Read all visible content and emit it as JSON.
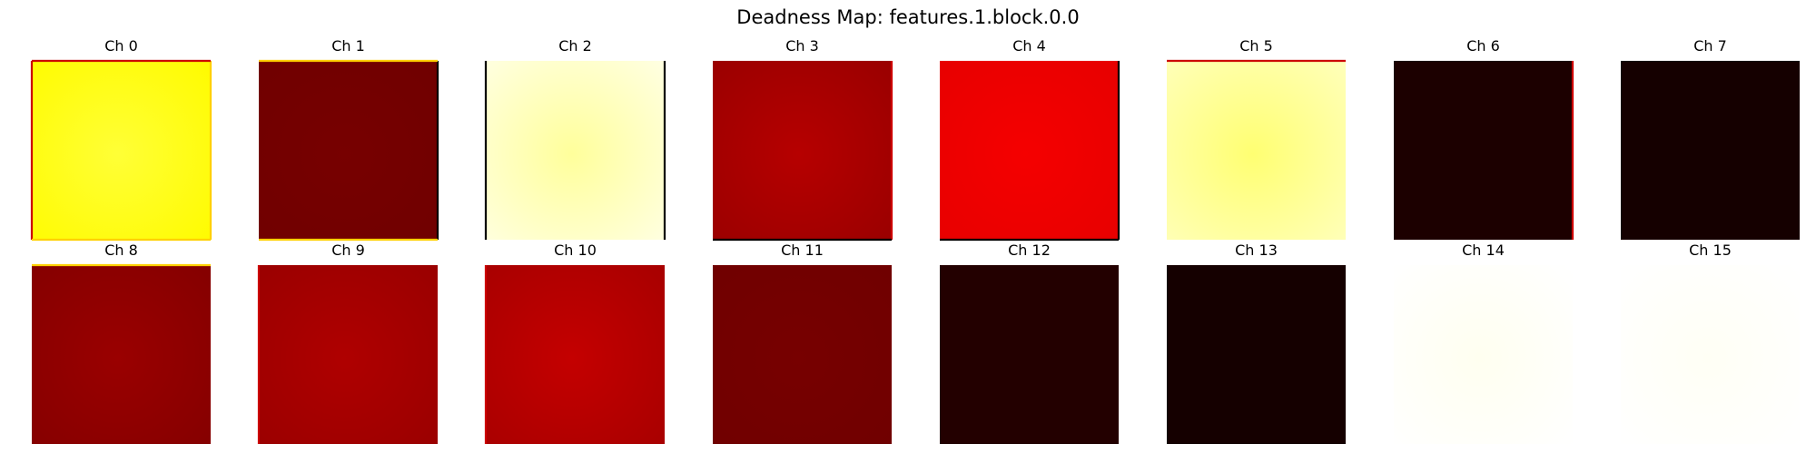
{
  "figure": {
    "title": "Deadness Map: features.1.block.0.0"
  },
  "chart_data": {
    "type": "heatmap",
    "title": "Deadness Map: features.1.block.0.0",
    "colormap": "hot",
    "axes_visible": false,
    "layout": {
      "rows": 2,
      "cols": 8
    },
    "panels": [
      {
        "title": "Ch 0",
        "level": 0.74,
        "center_level": 0.8,
        "edge_colors": {
          "left": "#cc0000",
          "right": "#ffd000",
          "top": "#cc0000",
          "bottom": "#ffd000"
        }
      },
      {
        "title": "Ch 1",
        "level": 0.16,
        "center_level": 0.17,
        "edge_colors": {
          "left": null,
          "right": "#000000",
          "top": "#ffd000",
          "bottom": "#ffd000"
        }
      },
      {
        "title": "Ch 2",
        "level": 0.97,
        "center_level": 0.9,
        "edge_colors": {
          "left": "#000000",
          "right": "#000000",
          "top": null,
          "bottom": null
        }
      },
      {
        "title": "Ch 3",
        "level": 0.22,
        "center_level": 0.26,
        "edge_colors": {
          "left": null,
          "right": "#cc0000",
          "top": null,
          "bottom": "#000000"
        }
      },
      {
        "title": "Ch 4",
        "level": 0.33,
        "center_level": 0.35,
        "edge_colors": {
          "left": null,
          "right": "#000000",
          "top": null,
          "bottom": "#000000"
        }
      },
      {
        "title": "Ch 5",
        "level": 0.93,
        "center_level": 0.86,
        "edge_colors": {
          "left": null,
          "right": null,
          "top": "#cc0000",
          "bottom": null
        }
      },
      {
        "title": "Ch 6",
        "level": 0.04,
        "center_level": 0.04,
        "edge_colors": {
          "left": null,
          "right": "#cc0000",
          "top": null,
          "bottom": null
        }
      },
      {
        "title": "Ch 7",
        "level": 0.03,
        "center_level": 0.03,
        "edge_colors": {
          "left": null,
          "right": null,
          "top": null,
          "bottom": null
        }
      },
      {
        "title": "Ch 8",
        "level": 0.19,
        "center_level": 0.22,
        "edge_colors": {
          "left": null,
          "right": null,
          "top": "#ffd000",
          "bottom": null
        }
      },
      {
        "title": "Ch 9",
        "level": 0.22,
        "center_level": 0.25,
        "edge_colors": {
          "left": "#cc0000",
          "right": null,
          "top": null,
          "bottom": null
        }
      },
      {
        "title": "Ch 10",
        "level": 0.24,
        "center_level": 0.28,
        "edge_colors": {
          "left": "#cc0000",
          "right": null,
          "top": null,
          "bottom": null
        }
      },
      {
        "title": "Ch 11",
        "level": 0.16,
        "center_level": 0.17,
        "edge_colors": {
          "left": null,
          "right": null,
          "top": null,
          "bottom": null
        }
      },
      {
        "title": "Ch 12",
        "level": 0.05,
        "center_level": 0.05,
        "edge_colors": {
          "left": null,
          "right": null,
          "top": null,
          "bottom": null
        }
      },
      {
        "title": "Ch 13",
        "level": 0.03,
        "center_level": 0.03,
        "edge_colors": {
          "left": null,
          "right": null,
          "top": null,
          "bottom": null
        }
      },
      {
        "title": "Ch 14",
        "level": 1.0,
        "center_level": 0.985,
        "edge_colors": {
          "left": null,
          "right": null,
          "top": null,
          "bottom": null
        }
      },
      {
        "title": "Ch 15",
        "level": 1.0,
        "center_level": 0.99,
        "edge_colors": {
          "left": null,
          "right": null,
          "top": null,
          "bottom": null
        }
      }
    ]
  }
}
